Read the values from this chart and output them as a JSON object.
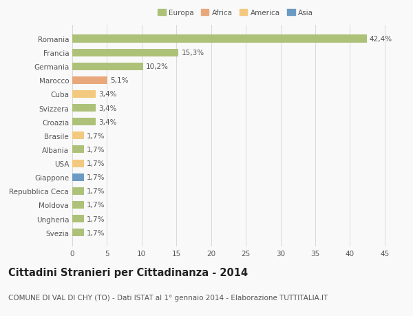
{
  "categories": [
    "Romania",
    "Francia",
    "Germania",
    "Marocco",
    "Cuba",
    "Svizzera",
    "Croazia",
    "Brasile",
    "Albania",
    "USA",
    "Giappone",
    "Repubblica Ceca",
    "Moldova",
    "Ungheria",
    "Svezia"
  ],
  "values": [
    42.4,
    15.3,
    10.2,
    5.1,
    3.4,
    3.4,
    3.4,
    1.7,
    1.7,
    1.7,
    1.7,
    1.7,
    1.7,
    1.7,
    1.7
  ],
  "labels": [
    "42,4%",
    "15,3%",
    "10,2%",
    "5,1%",
    "3,4%",
    "3,4%",
    "3,4%",
    "1,7%",
    "1,7%",
    "1,7%",
    "1,7%",
    "1,7%",
    "1,7%",
    "1,7%",
    "1,7%"
  ],
  "colors": [
    "#adc178",
    "#adc178",
    "#adc178",
    "#e8a87c",
    "#f2c97e",
    "#adc178",
    "#adc178",
    "#f2c97e",
    "#adc178",
    "#f2c97e",
    "#6b9bc3",
    "#adc178",
    "#adc178",
    "#adc178",
    "#adc178"
  ],
  "legend_labels": [
    "Europa",
    "Africa",
    "America",
    "Asia"
  ],
  "legend_colors": [
    "#adc178",
    "#e8a87c",
    "#f2c97e",
    "#6b9bc3"
  ],
  "title": "Cittadini Stranieri per Cittadinanza - 2014",
  "subtitle": "COMUNE DI VAL DI CHY (TO) - Dati ISTAT al 1° gennaio 2014 - Elaborazione TUTTITALIA.IT",
  "xlim": [
    0,
    47
  ],
  "xticks": [
    0,
    5,
    10,
    15,
    20,
    25,
    30,
    35,
    40,
    45
  ],
  "background_color": "#f9f9f9",
  "grid_color": "#d8d8d8",
  "bar_height": 0.55,
  "label_fontsize": 7.5,
  "tick_fontsize": 7.5,
  "title_fontsize": 10.5,
  "subtitle_fontsize": 7.5,
  "text_color": "#555555",
  "title_color": "#222222"
}
